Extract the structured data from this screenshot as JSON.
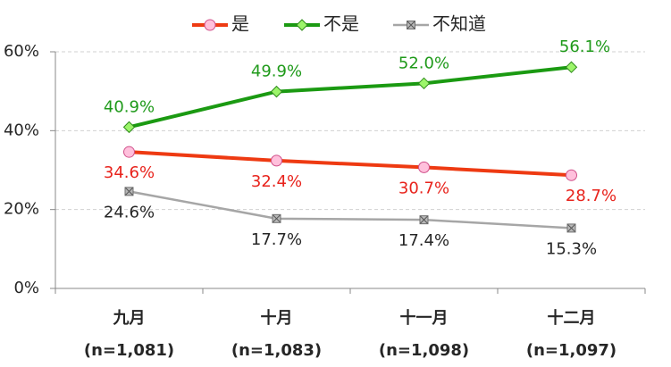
{
  "chart_data": {
    "type": "line",
    "categories": [
      "九月",
      "十月",
      "十一月",
      "十二月"
    ],
    "sample_sizes": [
      "(n=1,081)",
      "(n=1,083)",
      "(n=1,098)",
      "(n=1,097)"
    ],
    "series": [
      {
        "name": "是",
        "color": "#ee3a12",
        "marker_fill": "#ffc0dc",
        "marker_stroke": "#d0508a",
        "marker": "circle",
        "values": [
          34.6,
          32.4,
          30.7,
          28.7
        ],
        "value_labels": [
          "34.6%",
          "32.4%",
          "30.7%",
          "28.7%"
        ],
        "label_color": "#e8231c"
      },
      {
        "name": "不是",
        "color": "#1b9a12",
        "marker_fill": "#9cf56a",
        "marker_stroke": "#2e8a1a",
        "marker": "diamond",
        "values": [
          40.9,
          49.9,
          52.0,
          56.1
        ],
        "value_labels": [
          "40.9%",
          "49.9%",
          "52.0%",
          "56.1%"
        ],
        "label_color": "#1f9a1a"
      },
      {
        "name": "不知道",
        "color": "#a6a6a6",
        "marker_fill": "#b8b8b8",
        "marker_stroke": "#707070",
        "marker": "xsquare",
        "values": [
          24.6,
          17.7,
          17.4,
          15.3
        ],
        "value_labels": [
          "24.6%",
          "17.7%",
          "17.4%",
          "15.3%"
        ],
        "label_color": "#262626"
      }
    ],
    "ylim": [
      0,
      60
    ],
    "yticks": [
      {
        "value": 0,
        "label": "0%"
      },
      {
        "value": 20,
        "label": "20%"
      },
      {
        "value": 40,
        "label": "40%"
      },
      {
        "value": 60,
        "label": "60%"
      }
    ],
    "grid": true,
    "legend": "top"
  }
}
